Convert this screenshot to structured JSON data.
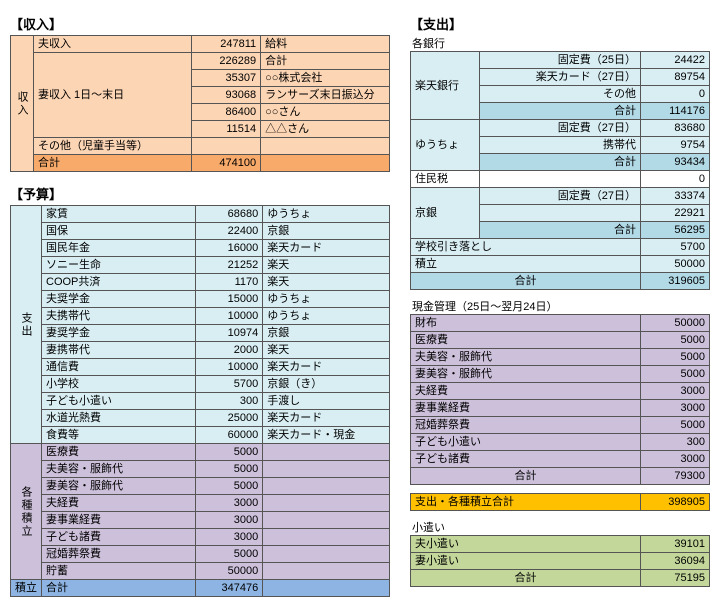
{
  "titles": {
    "income": "【収入】",
    "budget": "【予算】",
    "expense": "【支出】",
    "banks": "各銀行",
    "cash": "現金管理（25日～翌月24日）",
    "allowance": "小遣い"
  },
  "sideLabels": {
    "income": "収入",
    "expense": "支出",
    "savings": "各種積立",
    "tsumitate": "積立"
  },
  "income": {
    "rows": [
      {
        "label": "夫収入",
        "value": "247811",
        "note": "給料"
      },
      {
        "label": "",
        "value": "226289",
        "note": "合計"
      },
      {
        "label": "",
        "value": "35307",
        "note": "○○株式会社"
      },
      {
        "label": "",
        "value": "93068",
        "note": "ランサーズ末日振込分"
      },
      {
        "label": "",
        "value": "86400",
        "note": "○○さん"
      },
      {
        "label": "",
        "value": "11514",
        "note": "△△さん"
      },
      {
        "label": "その他（児童手当等）",
        "value": "",
        "note": ""
      }
    ],
    "wifeLabel": "妻収入 1日～末日",
    "totalLabel": "合計",
    "totalValue": "474100"
  },
  "budget": {
    "exp": [
      {
        "label": "家賃",
        "value": "68680",
        "note": "ゆうちょ"
      },
      {
        "label": "国保",
        "value": "22400",
        "note": "京銀"
      },
      {
        "label": "国民年金",
        "value": "16000",
        "note": "楽天カード"
      },
      {
        "label": "ソニー生命",
        "value": "21252",
        "note": "楽天"
      },
      {
        "label": "COOP共済",
        "value": "1170",
        "note": "楽天"
      },
      {
        "label": "夫奨学金",
        "value": "15000",
        "note": "ゆうちょ"
      },
      {
        "label": "夫携帯代",
        "value": "10000",
        "note": "ゆうちょ"
      },
      {
        "label": "妻奨学金",
        "value": "10974",
        "note": "京銀"
      },
      {
        "label": "妻携帯代",
        "value": "2000",
        "note": "楽天"
      },
      {
        "label": "通信費",
        "value": "10000",
        "note": "楽天カード"
      },
      {
        "label": "小学校",
        "value": "5700",
        "note": "京銀（き）"
      },
      {
        "label": "子ども小遣い",
        "value": "300",
        "note": "手渡し"
      },
      {
        "label": "水道光熱費",
        "value": "25000",
        "note": "楽天カード"
      },
      {
        "label": "食費等",
        "value": "60000",
        "note": "楽天カード・現金"
      }
    ],
    "sav": [
      {
        "label": "医療費",
        "value": "5000",
        "note": ""
      },
      {
        "label": "夫美容・服飾代",
        "value": "5000",
        "note": ""
      },
      {
        "label": "妻美容・服飾代",
        "value": "5000",
        "note": ""
      },
      {
        "label": "夫経費",
        "value": "3000",
        "note": ""
      },
      {
        "label": "妻事業経費",
        "value": "3000",
        "note": ""
      },
      {
        "label": "子ども諸費",
        "value": "3000",
        "note": ""
      },
      {
        "label": "冠婚葬祭費",
        "value": "5000",
        "note": ""
      },
      {
        "label": "貯蓄",
        "value": "50000",
        "note": ""
      }
    ],
    "totalLabel": "合計",
    "totalValue": "347476"
  },
  "banks": {
    "groups": [
      {
        "name": "楽天銀行",
        "bg": "bg-blue1",
        "rows": [
          {
            "label": "固定費（25日）",
            "value": "24422"
          },
          {
            "label": "楽天カード（27日）",
            "value": "89754"
          },
          {
            "label": "その他",
            "value": "0"
          },
          {
            "label": "合計",
            "value": "114176",
            "total": true
          }
        ]
      },
      {
        "name": "ゆうちょ",
        "bg": "bg-blue1",
        "rows": [
          {
            "label": "固定費（27日）",
            "value": "83680"
          },
          {
            "label": "携帯代",
            "value": "9754"
          },
          {
            "label": "合計",
            "value": "93434",
            "total": true
          }
        ]
      },
      {
        "name": "住民税",
        "bg": "bg-white",
        "rows": [
          {
            "label": "",
            "value": "0"
          }
        ]
      },
      {
        "name": "京銀",
        "bg": "bg-blue1",
        "rows": [
          {
            "label": "固定費（27日）",
            "value": "33374"
          },
          {
            "label": "",
            "value": "22921"
          },
          {
            "label": "合計",
            "value": "56295",
            "total": true
          }
        ]
      }
    ],
    "extra": [
      {
        "label": "学校引き落とし",
        "value": "5700"
      },
      {
        "label": "積立",
        "value": "50000"
      }
    ],
    "totalLabel": "合計",
    "totalValue": "319605"
  },
  "cash": {
    "rows": [
      {
        "label": "財布",
        "value": "50000"
      },
      {
        "label": "医療費",
        "value": "5000"
      },
      {
        "label": "夫美容・服飾代",
        "value": "5000"
      },
      {
        "label": "妻美容・服飾代",
        "value": "5000"
      },
      {
        "label": "夫経費",
        "value": "3000"
      },
      {
        "label": "妻事業経費",
        "value": "3000"
      },
      {
        "label": "冠婚葬祭費",
        "value": "5000"
      },
      {
        "label": "子ども小遣い",
        "value": "300"
      },
      {
        "label": "子ども諸費",
        "value": "3000"
      }
    ],
    "totalLabel": "合計",
    "totalValue": "79300"
  },
  "grand": {
    "label": "支出・各種積立合計",
    "value": "398905"
  },
  "allowance": {
    "rows": [
      {
        "label": "夫小遣い",
        "value": "39101"
      },
      {
        "label": "妻小遣い",
        "value": "36094"
      }
    ],
    "totalLabel": "合計",
    "totalValue": "75195"
  }
}
